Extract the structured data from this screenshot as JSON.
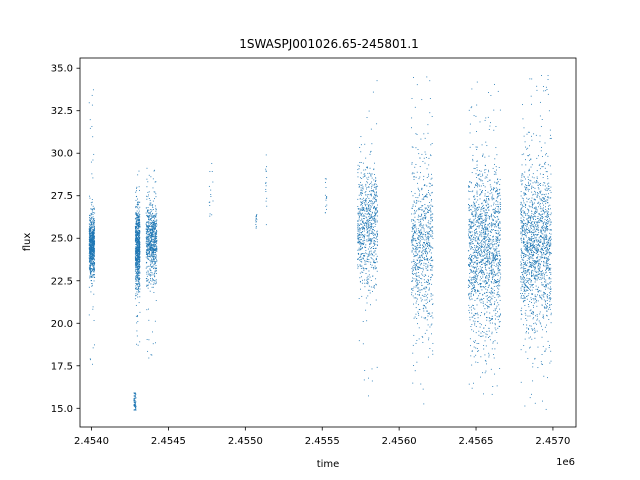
{
  "chart_data": {
    "type": "scatter",
    "title": "1SWASPJ001026.65-245801.1",
    "xlabel": "time",
    "ylabel": "flux",
    "x_offset_label": "1e6",
    "xlim": [
      2453925,
      2457150
    ],
    "ylim": [
      13.9,
      35.6
    ],
    "x_ticks": [
      2454000,
      2454500,
      2455000,
      2455500,
      2456000,
      2456500,
      2457000
    ],
    "x_tick_labels": [
      "2.4540",
      "2.4545",
      "2.4550",
      "2.4555",
      "2.4560",
      "2.4565",
      "2.4570"
    ],
    "y_ticks": [
      15.0,
      17.5,
      20.0,
      22.5,
      25.0,
      27.5,
      30.0,
      32.5,
      35.0
    ],
    "y_tick_labels": [
      "15.0",
      "17.5",
      "20.0",
      "22.5",
      "25.0",
      "27.5",
      "30.0",
      "32.5",
      "35.0"
    ],
    "grid": false,
    "legend": "none",
    "marker_color": "#1f77b4",
    "series": [
      {
        "clusters": [
          {
            "x_range": [
              2453985,
              2454020
            ],
            "y_center": 24.6,
            "y_spread": 0.9,
            "density": "high",
            "outlier_range": [
              17.0,
              34.0
            ]
          },
          {
            "x_range": [
              2454275,
              2454290
            ],
            "y_center": 15.3,
            "y_spread": 0.4,
            "density": "medium",
            "outlier_range": [
              14.9,
              15.9
            ]
          },
          {
            "x_range": [
              2454285,
              2454315
            ],
            "y_center": 24.5,
            "y_spread": 1.2,
            "density": "high",
            "outlier_range": [
              18.5,
              29.0
            ]
          },
          {
            "x_range": [
              2454355,
              2454425
            ],
            "y_center": 24.8,
            "y_spread": 1.1,
            "density": "high",
            "outlier_range": [
              17.8,
              30.0
            ]
          },
          {
            "x_range": [
              2454765,
              2454790
            ],
            "y_center": 27.5,
            "y_spread": 0.9,
            "density": "sparse",
            "outlier_range": [
              26.3,
              29.4
            ]
          },
          {
            "x_range": [
              2455065,
              2455075
            ],
            "y_center": 26.0,
            "y_spread": 0.3,
            "density": "sparse",
            "outlier_range": [
              25.6,
              26.4
            ]
          },
          {
            "x_range": [
              2455130,
              2455140
            ],
            "y_center": 27.5,
            "y_spread": 1.3,
            "density": "sparse",
            "outlier_range": [
              25.8,
              29.9
            ]
          },
          {
            "x_range": [
              2455520,
              2455530
            ],
            "y_center": 27.5,
            "y_spread": 0.7,
            "density": "sparse",
            "outlier_range": [
              26.5,
              28.5
            ]
          },
          {
            "x_range": [
              2455730,
              2455860
            ],
            "y_center": 25.8,
            "y_spread": 1.8,
            "density": "high",
            "outlier_range": [
              15.5,
              34.3
            ]
          },
          {
            "x_range": [
              2456080,
              2456220
            ],
            "y_center": 24.5,
            "y_spread": 2.6,
            "density": "high",
            "outlier_range": [
              14.9,
              34.8
            ]
          },
          {
            "x_range": [
              2456450,
              2456660
            ],
            "y_center": 24.4,
            "y_spread": 2.4,
            "density": "very high",
            "outlier_range": [
              14.9,
              34.7
            ]
          },
          {
            "x_range": [
              2456790,
              2456990
            ],
            "y_center": 24.6,
            "y_spread": 2.5,
            "density": "very high",
            "outlier_range": [
              14.9,
              34.7
            ]
          }
        ]
      }
    ]
  }
}
